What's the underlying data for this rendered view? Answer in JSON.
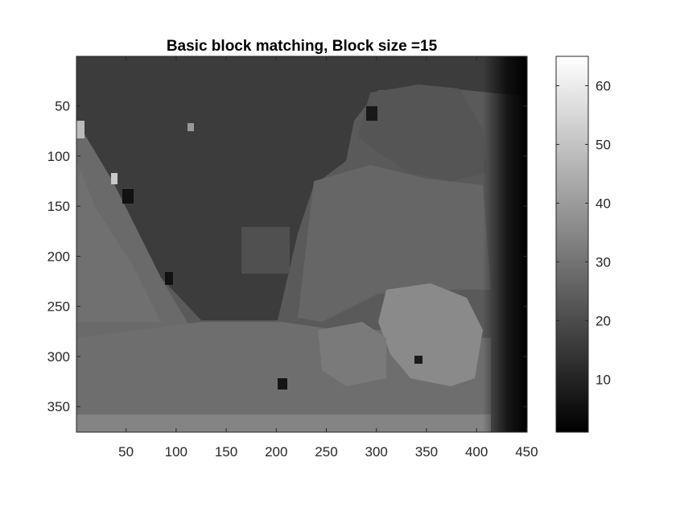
{
  "chart_data": {
    "type": "heatmap",
    "title": "Basic block matching, Block size =15",
    "xlabel": "",
    "ylabel": "",
    "xlim": [
      0.5,
      450.5
    ],
    "ylim": [
      0.5,
      375.5
    ],
    "y_reversed": true,
    "x_ticks": [
      50,
      100,
      150,
      200,
      250,
      300,
      350,
      400,
      450
    ],
    "y_ticks": [
      50,
      100,
      150,
      200,
      250,
      300,
      350
    ],
    "colormap": "gray",
    "clim": [
      1,
      65
    ],
    "colorbar_ticks": [
      10,
      20,
      30,
      40,
      50,
      60
    ],
    "grid": false,
    "legend": "none",
    "colors": {
      "axis_line": "#262626",
      "background": "#ffffff",
      "colormap_low": "#000000",
      "colormap_high": "#ffffff"
    }
  }
}
